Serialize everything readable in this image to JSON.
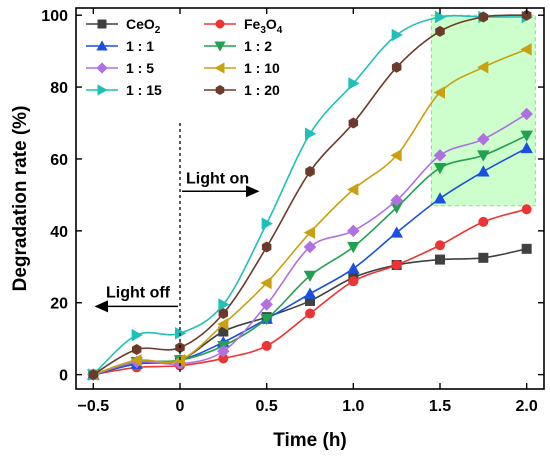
{
  "chart_data": {
    "type": "line",
    "xlabel": "Time (h)",
    "ylabel": "Degradation rate (%)",
    "xlim": [
      -0.6,
      2.1
    ],
    "ylim": [
      -4,
      102
    ],
    "xticks": [
      -0.5,
      0,
      0.5,
      1.0,
      1.5,
      2.0
    ],
    "xtick_labels": [
      "−0.5",
      "0",
      "0.5",
      "1.0",
      "1.5",
      "2.0"
    ],
    "yticks": [
      0,
      20,
      40,
      60,
      80,
      100
    ],
    "ytick_labels": [
      "0",
      "20",
      "40",
      "60",
      "80",
      "100"
    ],
    "legend_position": "top-left",
    "legend_columns": 2,
    "grid": false,
    "annotations": {
      "light_on": "Light on",
      "light_off": "Light off",
      "divider_x": 0
    },
    "highlight_region": {
      "x": [
        1.45,
        2.05
      ],
      "y": [
        47,
        100
      ],
      "color": "#ccffcc"
    },
    "x": [
      -0.5,
      -0.25,
      0,
      0.25,
      0.5,
      0.75,
      1.0,
      1.25,
      1.5,
      1.75,
      2.0
    ],
    "series": [
      {
        "name": "CeO2",
        "label_base": "CeO",
        "label_sub": "2",
        "color": "#404040",
        "marker": "square",
        "values": [
          0,
          3,
          4,
          12,
          16,
          20.5,
          27,
          30.5,
          32,
          32.5,
          35
        ]
      },
      {
        "name": "Fe3O4",
        "label_base": "Fe",
        "label_sub": "3",
        "label_tail": "O",
        "label_sub2": "4",
        "color": "#ee3333",
        "marker": "circle",
        "values": [
          0,
          2,
          2.5,
          4.5,
          8,
          17,
          26,
          30.5,
          36,
          42.5,
          46
        ]
      },
      {
        "name": "1 : 1",
        "color": "#1a50e0",
        "marker": "triangle-up",
        "values": [
          0,
          3,
          4,
          9,
          15.5,
          22.5,
          29.5,
          39.5,
          49,
          56.5,
          63
        ]
      },
      {
        "name": "1 : 2",
        "color": "#22a050",
        "marker": "triangle-down",
        "values": [
          0,
          3.5,
          4,
          8,
          15.5,
          27.5,
          35.5,
          46.5,
          57.5,
          61,
          66.5
        ]
      },
      {
        "name": "1 : 5",
        "color": "#b070e0",
        "marker": "diamond",
        "values": [
          0,
          3.5,
          3,
          6.5,
          19.5,
          35.5,
          40,
          48.5,
          61,
          65.5,
          72.5
        ]
      },
      {
        "name": "1 : 10",
        "color": "#c8a010",
        "marker": "triangle-left",
        "values": [
          0,
          4,
          4,
          14,
          25.5,
          39.5,
          51.5,
          61,
          78.5,
          85.5,
          90.5
        ]
      },
      {
        "name": "1 : 15",
        "color": "#20c0b8",
        "marker": "triangle-right",
        "values": [
          0,
          11,
          11.5,
          19.5,
          42,
          67,
          81,
          94.5,
          99.5,
          99.5,
          99.5
        ]
      },
      {
        "name": "1 : 20",
        "color": "#6b3a2a",
        "marker": "hexagon",
        "values": [
          0,
          7,
          7.5,
          17,
          35.5,
          56.5,
          70,
          85.5,
          95.5,
          99.5,
          100
        ]
      }
    ]
  }
}
